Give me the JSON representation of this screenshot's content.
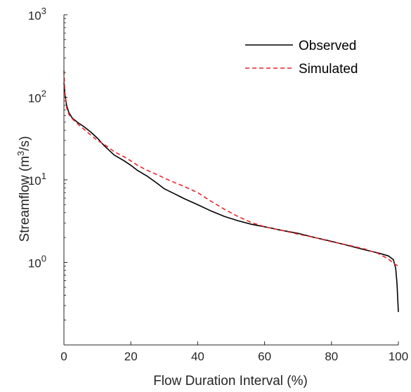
{
  "chart_data": {
    "type": "line",
    "xlabel": "Flow Duration Interval (%)",
    "ylabel_base": "Streamflow (m",
    "ylabel_sup": "3",
    "ylabel_end": "/s)",
    "xlim": [
      0,
      100
    ],
    "ylim": [
      0.1,
      1000
    ],
    "yscale": "log",
    "grid": false,
    "legend_position": "top-right",
    "x_ticks": [
      0,
      20,
      40,
      60,
      80,
      100
    ],
    "x_tick_labels": [
      "0",
      "20",
      "40",
      "60",
      "80",
      "100"
    ],
    "y_ticks": [
      1,
      10,
      100,
      1000
    ],
    "y_tick_bases": [
      "10",
      "10",
      "10",
      "10"
    ],
    "y_tick_exps": [
      "0",
      "1",
      "2",
      "3"
    ],
    "series": [
      {
        "name": "Observed",
        "color": "#000000",
        "style": "solid",
        "x": [
          0,
          0.3,
          0.8,
          1.5,
          2.5,
          4,
          6,
          8,
          10,
          12,
          15,
          18,
          20,
          22,
          25,
          28,
          30,
          33,
          36,
          40,
          44,
          48,
          52,
          56,
          60,
          65,
          70,
          75,
          80,
          85,
          90,
          94,
          97,
          98.5,
          99.2,
          99.6,
          100
        ],
        "y": [
          150,
          110,
          80,
          65,
          56,
          50,
          44,
          38,
          32,
          26,
          20,
          17,
          15,
          13,
          11,
          9,
          7.8,
          6.8,
          5.9,
          5.0,
          4.2,
          3.6,
          3.2,
          2.9,
          2.7,
          2.45,
          2.25,
          2.0,
          1.8,
          1.6,
          1.42,
          1.3,
          1.2,
          1.08,
          0.85,
          0.55,
          0.25
        ]
      },
      {
        "name": "Simulated",
        "color": "#e8252a",
        "style": "dashed",
        "x": [
          0,
          0.3,
          0.8,
          1.5,
          2.5,
          4,
          6,
          8,
          10,
          12,
          15,
          18,
          20,
          22,
          25,
          28,
          30,
          33,
          36,
          40,
          44,
          48,
          52,
          56,
          60,
          65,
          70,
          75,
          80,
          85,
          90,
          94,
          97,
          99,
          100
        ],
        "y": [
          210,
          110,
          75,
          62,
          55,
          48,
          41,
          35,
          30,
          27,
          22,
          19,
          17,
          15,
          13,
          11.5,
          10.5,
          9.3,
          8.3,
          7.0,
          5.5,
          4.4,
          3.6,
          3.05,
          2.7,
          2.45,
          2.2,
          2.0,
          1.78,
          1.62,
          1.45,
          1.28,
          1.1,
          0.95,
          0.9
        ]
      }
    ]
  }
}
